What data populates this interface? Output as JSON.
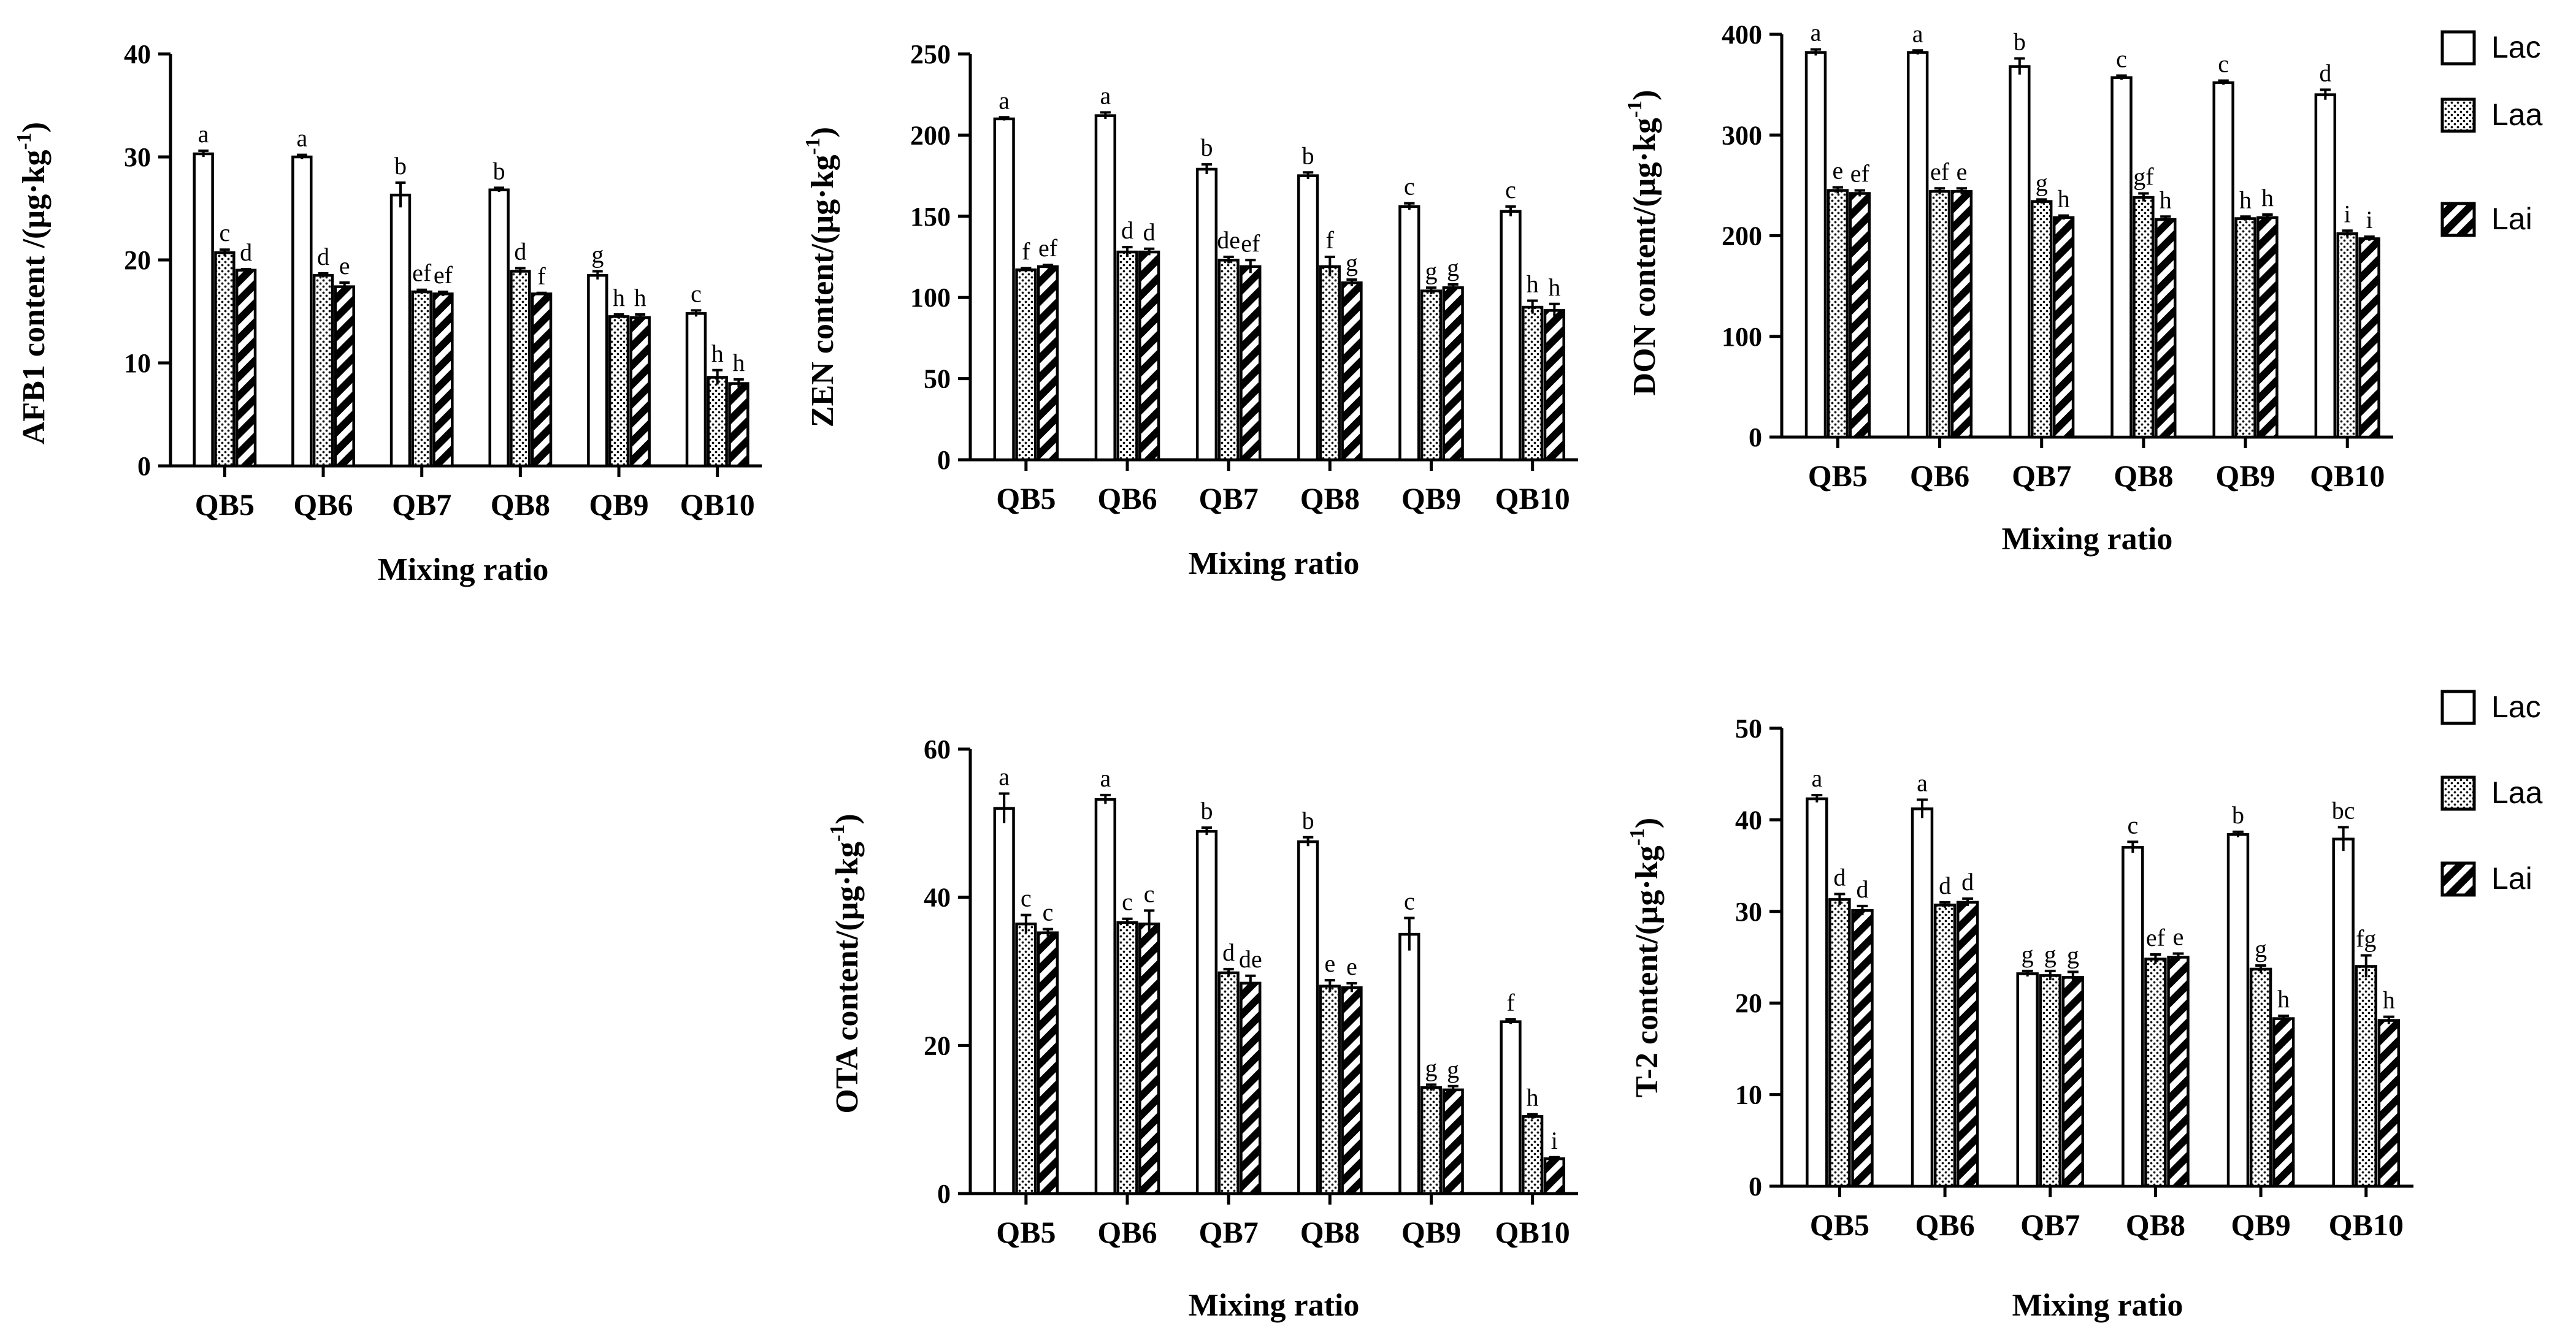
{
  "legend": [
    {
      "name": "Lac",
      "pattern": "open"
    },
    {
      "name": "Laa",
      "pattern": "dots"
    },
    {
      "name": "Lai",
      "pattern": "stripes"
    }
  ],
  "chart_data": [
    {
      "id": "afb1",
      "type": "bar",
      "ylabel": "AFB1 content /(µg·kg",
      "ylabel_sup": "-1",
      "ylabel_end": ")",
      "xlabel": "Mixing ratio",
      "ylim": [
        0,
        40
      ],
      "yticks": [
        0,
        10,
        20,
        30,
        40
      ],
      "categories": [
        "QB5",
        "QB6",
        "QB7",
        "QB8",
        "QB9",
        "QB10"
      ],
      "series": [
        {
          "name": "Lac",
          "values": [
            30.3,
            30.0,
            26.3,
            26.8,
            18.5,
            14.8
          ],
          "errors": [
            0.3,
            0.2,
            1.2,
            0.2,
            0.4,
            0.3
          ],
          "labels": [
            "a",
            "a",
            "b",
            "b",
            "g",
            "c"
          ]
        },
        {
          "name": "Laa",
          "values": [
            20.7,
            18.5,
            16.9,
            18.9,
            14.5,
            8.6
          ],
          "errors": [
            0.3,
            0.2,
            0.2,
            0.3,
            0.2,
            0.7
          ],
          "labels": [
            "c",
            "d",
            "ef",
            "d",
            "h",
            "h"
          ]
        },
        {
          "name": "Lai",
          "values": [
            19.0,
            17.4,
            16.7,
            16.7,
            14.4,
            8.0
          ],
          "errors": [
            0.1,
            0.4,
            0.2,
            0.1,
            0.3,
            0.4
          ],
          "labels": [
            "d",
            "e",
            "ef",
            "f",
            "h",
            "h"
          ]
        }
      ]
    },
    {
      "id": "zen",
      "type": "bar",
      "ylabel": "ZEN content/(µg·kg",
      "ylabel_sup": "-1",
      "ylabel_end": ")",
      "xlabel": "Mixing ratio",
      "ylim": [
        0,
        250
      ],
      "yticks": [
        0,
        50,
        100,
        150,
        200,
        250
      ],
      "categories": [
        "QB5",
        "QB6",
        "QB7",
        "QB8",
        "QB9",
        "QB10"
      ],
      "series": [
        {
          "name": "Lac",
          "values": [
            210,
            212,
            179,
            175,
            156,
            153
          ],
          "errors": [
            1,
            2,
            3,
            2,
            2,
            3
          ],
          "labels": [
            "a",
            "a",
            "b",
            "b",
            "c",
            "c"
          ]
        },
        {
          "name": "Laa",
          "values": [
            117,
            128,
            123,
            119,
            104,
            94
          ],
          "errors": [
            1,
            3,
            2,
            6,
            2,
            4
          ],
          "labels": [
            "f",
            "d",
            "de",
            "f",
            "g",
            "h"
          ]
        },
        {
          "name": "Lai",
          "values": [
            119,
            128,
            119,
            109,
            106,
            92
          ],
          "errors": [
            1,
            2,
            4,
            2,
            2,
            4
          ],
          "labels": [
            "ef",
            "d",
            "ef",
            "g",
            "g",
            "h"
          ]
        }
      ]
    },
    {
      "id": "don",
      "type": "bar",
      "ylabel": "DON content/(µg·kg",
      "ylabel_sup": "-1",
      "ylabel_end": ")",
      "xlabel": "Mixing ratio",
      "ylim": [
        0,
        400
      ],
      "yticks": [
        0,
        100,
        200,
        300,
        400
      ],
      "categories": [
        "QB5",
        "QB6",
        "QB7",
        "QB8",
        "QB9",
        "QB10"
      ],
      "series": [
        {
          "name": "Lac",
          "values": [
            382,
            382,
            368,
            357,
            352,
            340
          ],
          "errors": [
            3,
            2,
            8,
            2,
            2,
            5
          ],
          "labels": [
            "a",
            "a",
            "b",
            "c",
            "c",
            "d"
          ]
        },
        {
          "name": "Laa",
          "values": [
            245,
            244,
            234,
            238,
            217,
            202
          ],
          "errors": [
            3,
            3,
            2,
            4,
            2,
            3
          ],
          "labels": [
            "e",
            "ef",
            "g",
            "gf",
            "h",
            "i"
          ]
        },
        {
          "name": "Lai",
          "values": [
            242,
            244,
            218,
            216,
            218,
            197
          ],
          "errors": [
            3,
            3,
            2,
            3,
            3,
            2
          ],
          "labels": [
            "ef",
            "e",
            "h",
            "h",
            "h",
            "i"
          ]
        }
      ]
    },
    {
      "id": "ota",
      "type": "bar",
      "ylabel": "OTA content/(µg·kg",
      "ylabel_sup": "-1",
      "ylabel_end": ")",
      "xlabel": "Mixing ratio",
      "ylim": [
        0,
        60
      ],
      "yticks": [
        0,
        20,
        40,
        60
      ],
      "categories": [
        "QB5",
        "QB6",
        "QB7",
        "QB8",
        "QB9",
        "QB10"
      ],
      "series": [
        {
          "name": "Lac",
          "values": [
            52.0,
            53.2,
            48.9,
            47.5,
            35.0,
            23.2
          ],
          "errors": [
            2.0,
            0.6,
            0.5,
            0.6,
            2.2,
            0.3
          ],
          "labels": [
            "a",
            "a",
            "b",
            "b",
            "c",
            "f"
          ]
        },
        {
          "name": "Laa",
          "values": [
            36.4,
            36.6,
            29.8,
            28.0,
            14.3,
            10.4
          ],
          "errors": [
            1.2,
            0.5,
            0.5,
            0.8,
            0.4,
            0.3
          ],
          "labels": [
            "c",
            "c",
            "d",
            "e",
            "g",
            "h"
          ]
        },
        {
          "name": "Lai",
          "values": [
            35.2,
            36.4,
            28.4,
            27.8,
            14.0,
            4.7
          ],
          "errors": [
            0.5,
            1.8,
            1.0,
            0.6,
            0.5,
            0.2
          ],
          "labels": [
            "c",
            "c",
            "de",
            "e",
            "g",
            "i"
          ]
        }
      ]
    },
    {
      "id": "t2",
      "type": "bar",
      "ylabel": "T-2 content/(µg·kg",
      "ylabel_sup": "-1",
      "ylabel_end": ")",
      "xlabel": "Mixing ratio",
      "ylim": [
        0,
        50
      ],
      "yticks": [
        0,
        10,
        20,
        30,
        40,
        50
      ],
      "categories": [
        "QB5",
        "QB6",
        "QB7",
        "QB8",
        "QB9",
        "QB10"
      ],
      "series": [
        {
          "name": "Lac",
          "values": [
            42.3,
            41.2,
            23.2,
            37.0,
            38.4,
            37.9
          ],
          "errors": [
            0.4,
            1.0,
            0.3,
            0.6,
            0.3,
            1.3
          ],
          "labels": [
            "a",
            "a",
            "g",
            "c",
            "b",
            "bc"
          ]
        },
        {
          "name": "Laa",
          "values": [
            31.3,
            30.7,
            23.0,
            24.8,
            23.7,
            24.0
          ],
          "errors": [
            0.6,
            0.3,
            0.5,
            0.5,
            0.4,
            1.2
          ],
          "labels": [
            "d",
            "d",
            "g",
            "ef",
            "g",
            "fg"
          ]
        },
        {
          "name": "Lai",
          "values": [
            30.1,
            31.0,
            22.8,
            25.0,
            18.3,
            18.1
          ],
          "errors": [
            0.5,
            0.4,
            0.6,
            0.4,
            0.3,
            0.4
          ],
          "labels": [
            "d",
            "d",
            "g",
            "e",
            "h",
            "h"
          ]
        }
      ]
    }
  ]
}
